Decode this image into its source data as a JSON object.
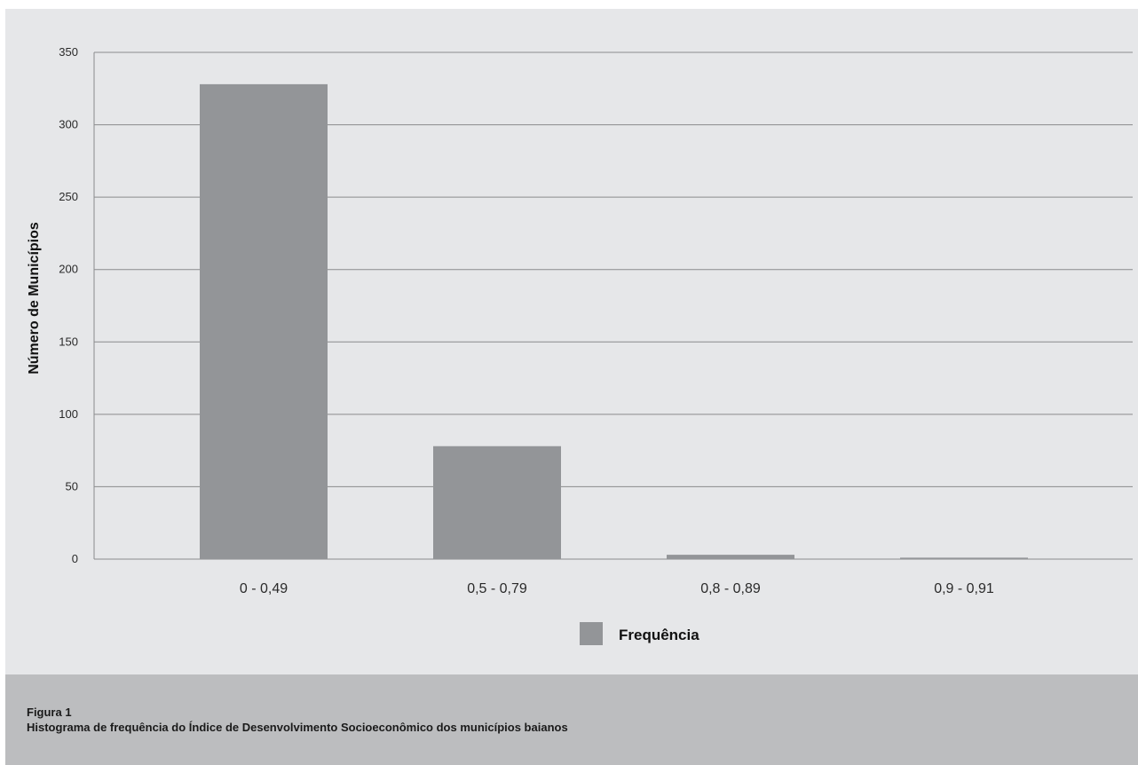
{
  "chart_data": {
    "type": "bar",
    "categories": [
      "0 - 0,49",
      "0,5 - 0,79",
      "0,8 - 0,89",
      "0,9 - 0,91"
    ],
    "series": [
      {
        "name": "Frequência",
        "values": [
          328,
          78,
          3,
          1
        ],
        "color": "#939598"
      }
    ],
    "title": "",
    "xlabel": "",
    "ylabel": "Número de Municípios",
    "ylim": [
      0,
      350
    ],
    "yticks": [
      "0",
      "50",
      "100",
      "150",
      "200",
      "250",
      "300",
      "350"
    ],
    "grid": true,
    "legend_position": "bottom-center"
  },
  "caption": {
    "label": "Figura 1",
    "text": "Histograma de frequência do Índice de Desenvolvimento Socioeconômico dos municípios baianos"
  },
  "colors": {
    "panel_background": "#e6e7e9",
    "caption_background": "#bcbdbf",
    "gridline": "#8a8b8d",
    "bar": "#939598"
  }
}
